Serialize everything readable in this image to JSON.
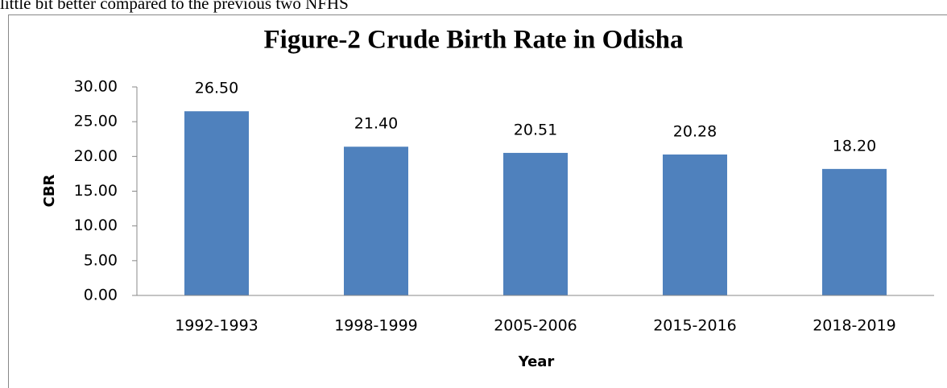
{
  "page_text": "little bit better compared to the previous two NFHS",
  "chart_data": {
    "type": "bar",
    "title": "Figure-2 Crude Birth Rate in Odisha",
    "x_label": "Year",
    "y_label": "CBR",
    "categories": [
      "1992-1993",
      "1998-1999",
      "2005-2006",
      "2015-2016",
      "2018-2019"
    ],
    "values": [
      26.5,
      21.4,
      20.51,
      20.28,
      18.2
    ],
    "value_labels": [
      "26.50",
      "21.40",
      "20.51",
      "20.28",
      "18.20"
    ],
    "color": "#4f81bd",
    "ylim": [
      0,
      30
    ],
    "yticks": [
      {
        "value": 0,
        "label": "0.00"
      },
      {
        "value": 5,
        "label": "5.00"
      },
      {
        "value": 10,
        "label": "10.00"
      },
      {
        "value": 15,
        "label": "15.00"
      },
      {
        "value": 20,
        "label": "20.00"
      },
      {
        "value": 25,
        "label": "25.00"
      },
      {
        "value": 30,
        "label": "30.00"
      }
    ],
    "grid": false
  }
}
